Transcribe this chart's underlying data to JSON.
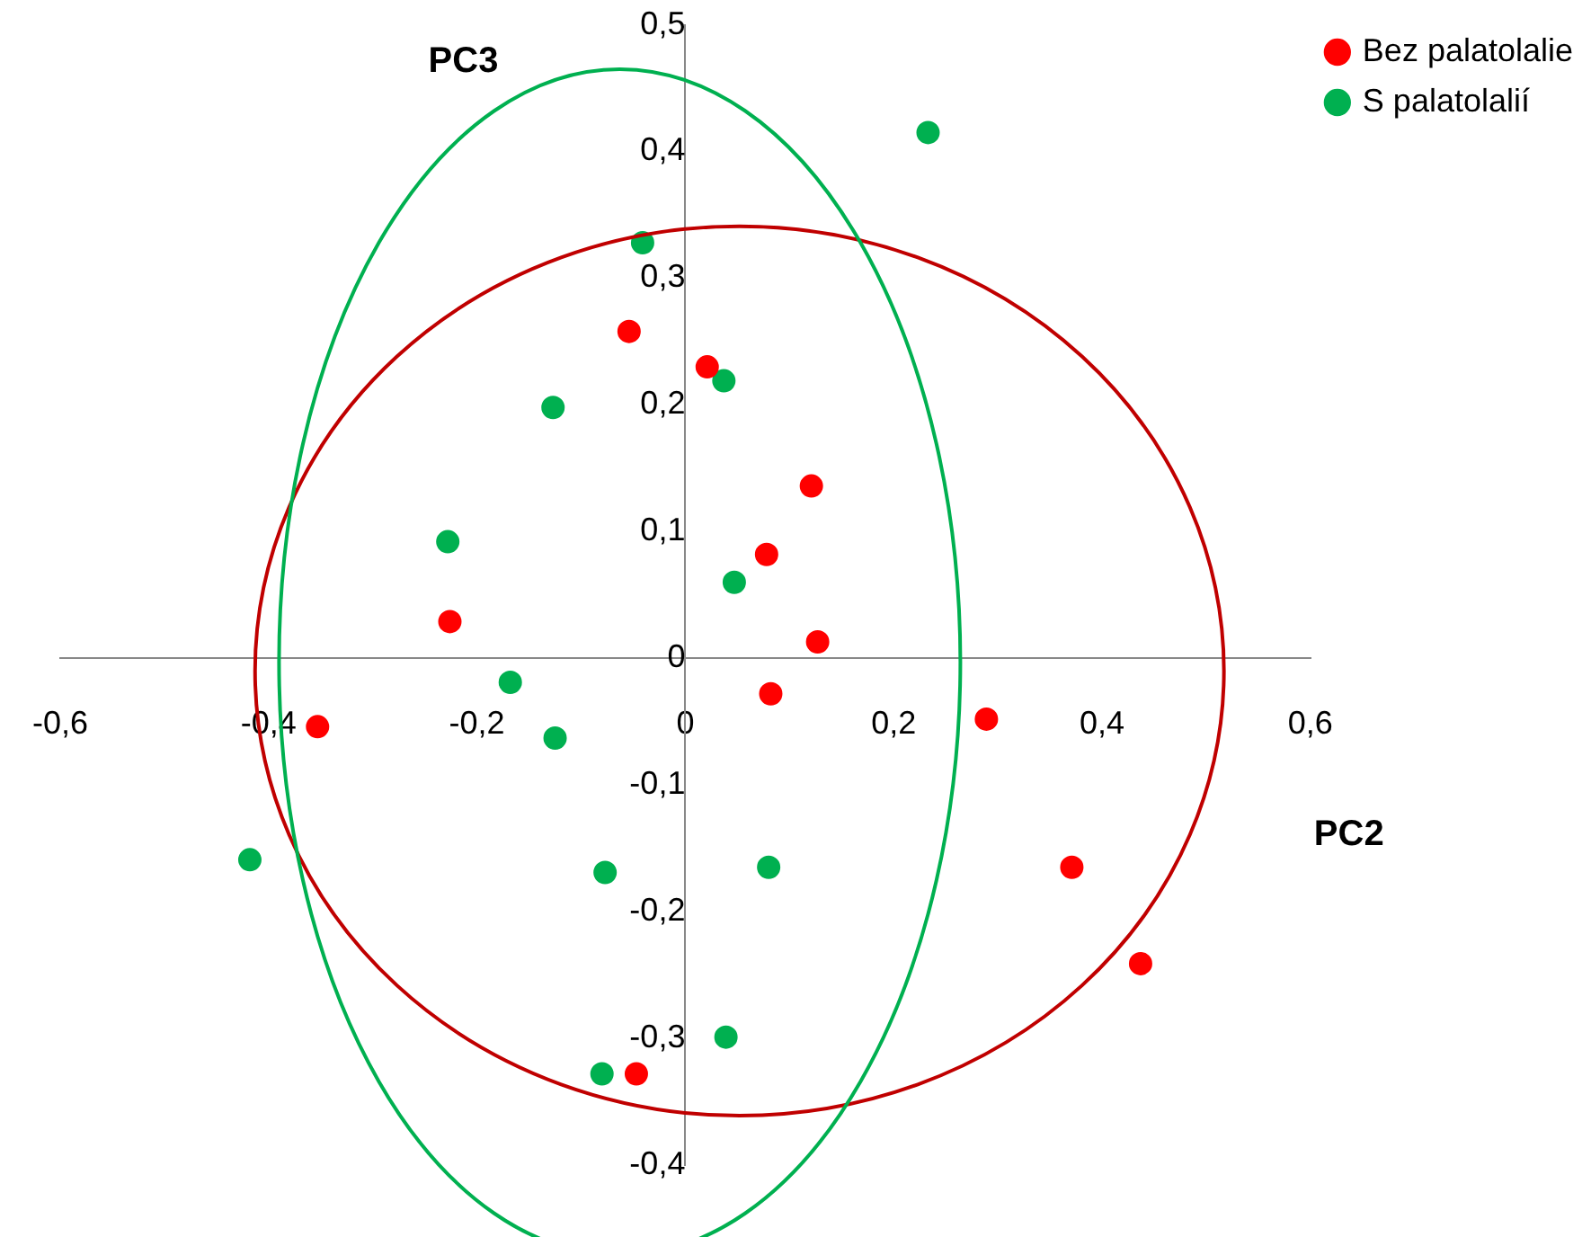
{
  "chart_data": {
    "type": "scatter",
    "xlabel": "PC2",
    "ylabel": "PC3",
    "xlim": [
      -0.6,
      0.6
    ],
    "xticks": [
      {
        "value": -0.6,
        "label": "-0,6"
      },
      {
        "value": -0.4,
        "label": "-0,4"
      },
      {
        "value": -0.2,
        "label": "-0,2"
      },
      0,
      {
        "value": 0.2,
        "label": "0,2"
      },
      {
        "value": 0.4,
        "label": "0,4"
      },
      {
        "value": 0.6,
        "label": "0,6"
      }
    ],
    "ylim": [
      -0.4,
      0.5
    ],
    "yticks": [
      {
        "value": -0.4,
        "label": "-0,4"
      },
      {
        "value": -0.3,
        "label": "-0,3"
      },
      {
        "value": -0.2,
        "label": "-0,2"
      },
      {
        "value": -0.1,
        "label": "-0,1"
      },
      0,
      {
        "value": 0.1,
        "label": "0,1"
      },
      {
        "value": 0.2,
        "label": "0,2"
      },
      {
        "value": 0.3,
        "label": "0,3"
      },
      {
        "value": 0.4,
        "label": "0,4"
      },
      {
        "value": 0.5,
        "label": "0,5"
      }
    ],
    "grid": false,
    "legend": "top right",
    "marker": "circle",
    "series": [
      {
        "name": "Bez palatolalie",
        "color": "#ff0000",
        "x": [
          -0.054,
          0.021,
          0.121,
          0.078,
          0.127,
          0.082,
          -0.226,
          -0.353,
          0.289,
          0.371,
          0.437,
          -0.047
        ],
        "values": [
          0.258,
          0.23,
          0.136,
          0.082,
          0.013,
          -0.028,
          0.029,
          -0.054,
          -0.048,
          -0.165,
          -0.241,
          -0.328
        ]
      },
      {
        "name": "S palatolalií",
        "color": "#00b050",
        "x": [
          0.233,
          -0.041,
          0.037,
          -0.127,
          -0.228,
          0.047,
          -0.168,
          -0.125,
          -0.418,
          -0.077,
          0.08,
          0.039,
          -0.08
        ],
        "values": [
          0.415,
          0.328,
          0.219,
          0.198,
          0.092,
          0.06,
          -0.019,
          -0.063,
          -0.159,
          -0.169,
          -0.165,
          -0.299,
          -0.328
        ]
      }
    ]
  }
}
